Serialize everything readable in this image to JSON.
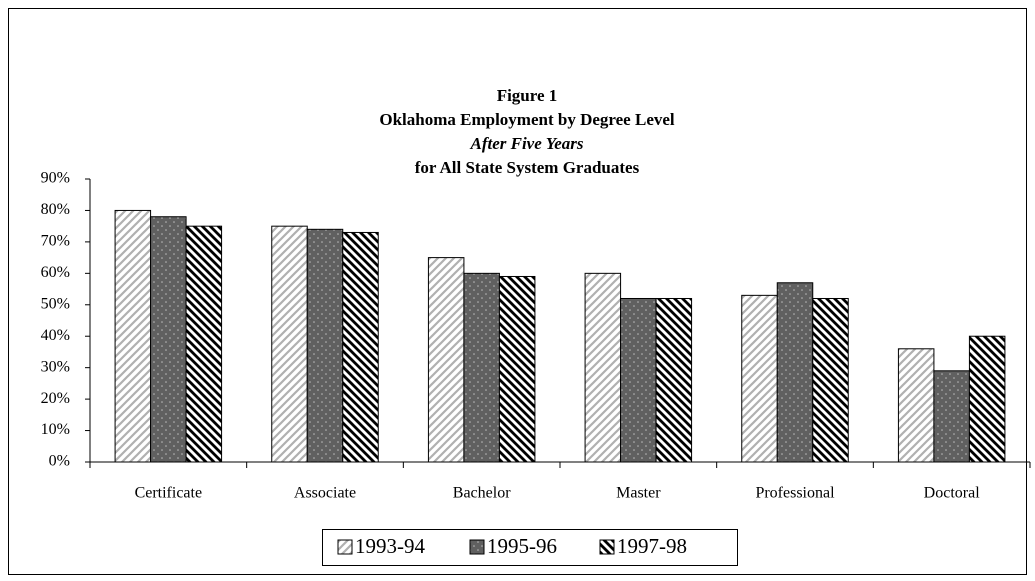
{
  "chart_data": {
    "type": "bar",
    "title_lines": [
      "Figure 1",
      "Oklahoma Employment by Degree Level",
      "After Five Years",
      "for All State System Graduates"
    ],
    "categories": [
      "Certificate",
      "Associate",
      "Bachelor",
      "Master",
      "Professional",
      "Doctoral"
    ],
    "series": [
      {
        "name": "1993-94",
        "color": "#b0b0b0",
        "values": [
          80,
          75,
          65,
          60,
          53,
          36
        ]
      },
      {
        "name": "1995-96",
        "color": "#606060",
        "values": [
          78,
          74,
          60,
          52,
          57,
          29
        ]
      },
      {
        "name": "1997-98",
        "color": "#000000",
        "values": [
          75,
          73,
          59,
          52,
          52,
          40
        ]
      }
    ],
    "ylim": [
      0,
      90
    ],
    "yticks": [
      {
        "value": 0,
        "label": "0%"
      },
      {
        "value": 10,
        "label": "10%"
      },
      {
        "value": 20,
        "label": "20%"
      },
      {
        "value": 30,
        "label": "30%"
      },
      {
        "value": 40,
        "label": "40%"
      },
      {
        "value": 50,
        "label": "50%"
      },
      {
        "value": 60,
        "label": "60%"
      },
      {
        "value": 70,
        "label": "70%"
      },
      {
        "value": 80,
        "label": "80%"
      },
      {
        "value": 90,
        "label": "90%"
      }
    ],
    "grid": false,
    "legend": "bottom"
  }
}
